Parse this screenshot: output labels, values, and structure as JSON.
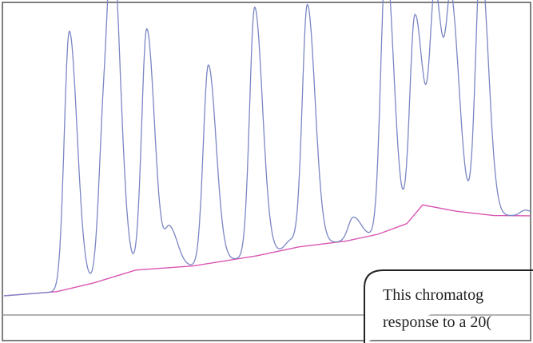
{
  "chart_data": {
    "type": "line",
    "title": "",
    "xlabel": "",
    "ylabel": "",
    "xlim": [
      0,
      100
    ],
    "ylim": [
      0,
      100
    ],
    "grid": false,
    "legend": "none",
    "series": [
      {
        "role": "signal",
        "color": "#7b86c4",
        "peaks": [
          {
            "rt": 12.4,
            "height": 92
          },
          {
            "rt": 19.0,
            "height": 58
          },
          {
            "rt": 20.8,
            "height": 96
          },
          {
            "rt": 27.1,
            "height": 86
          },
          {
            "rt": 31.5,
            "height": 14
          },
          {
            "rt": 38.8,
            "height": 71
          },
          {
            "rt": 47.6,
            "height": 89
          },
          {
            "rt": 54.4,
            "height": 3
          },
          {
            "rt": 57.6,
            "height": 86
          },
          {
            "rt": 66.3,
            "height": 8
          },
          {
            "rt": 72.5,
            "height": 97
          },
          {
            "rt": 78.0,
            "height": 71
          },
          {
            "rt": 80.5,
            "height": 6
          },
          {
            "rt": 81.9,
            "height": 73
          },
          {
            "rt": 85.0,
            "height": 70
          },
          {
            "rt": 90.5,
            "height": 91
          },
          {
            "rt": 99.0,
            "height": 2
          }
        ]
      },
      {
        "role": "baseline",
        "color": "#d955b3",
        "x": [
          0,
          10,
          17,
          25,
          36,
          48,
          56,
          65,
          71,
          76.5,
          79.5,
          86,
          93,
          100
        ],
        "y": [
          0.0,
          1.5,
          4.6,
          9.2,
          10.7,
          14.3,
          17.5,
          19.6,
          22.0,
          25.8,
          32.5,
          30.2,
          28.7,
          28.6
        ]
      }
    ],
    "annotations": [
      {
        "text": "This chromatog"
      },
      {
        "text": "response to a 20("
      }
    ]
  },
  "colors": {
    "signal": "#7b86c4",
    "baseline": "#d955b3",
    "frame": "#555555",
    "hline": "#9a9a9a"
  }
}
